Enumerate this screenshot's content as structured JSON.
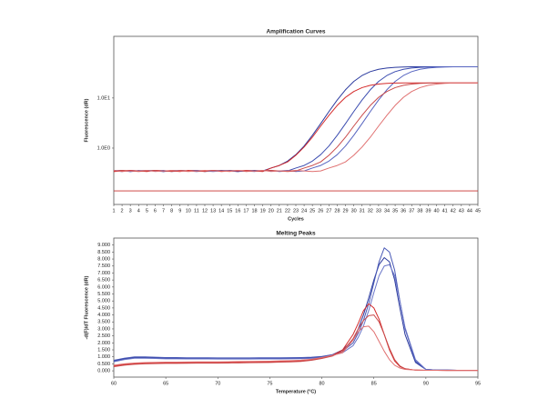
{
  "chart_data": [
    {
      "type": "line",
      "title": "Amplification Curves",
      "x_label": "Cycles",
      "y_label": "Fluorescence (dR)",
      "log_y": true,
      "grid": false,
      "x": [
        1,
        2,
        3,
        4,
        5,
        6,
        7,
        8,
        9,
        10,
        11,
        12,
        13,
        14,
        15,
        16,
        17,
        18,
        19,
        20,
        21,
        22,
        23,
        24,
        25,
        26,
        27,
        28,
        29,
        30,
        31,
        32,
        33,
        34,
        35,
        36,
        37,
        38,
        39,
        40,
        41,
        42,
        43,
        44,
        45
      ],
      "xlim": [
        1,
        45
      ],
      "xticks": [
        1,
        2,
        3,
        4,
        5,
        6,
        7,
        8,
        9,
        10,
        11,
        12,
        13,
        14,
        15,
        16,
        17,
        18,
        19,
        20,
        21,
        22,
        23,
        24,
        25,
        26,
        27,
        28,
        29,
        30,
        31,
        32,
        33,
        34,
        35,
        36,
        37,
        38,
        39,
        40,
        41,
        42,
        43,
        44,
        45
      ],
      "ylim": [
        0.075,
        170
      ],
      "yticks": [
        {
          "value": 1,
          "label": "1.0E0"
        },
        {
          "value": 10,
          "label": "1.0E1"
        }
      ],
      "threshold": 0.14,
      "threshold_color": "#c8312f",
      "series": [
        {
          "color": "#2b3a9e",
          "values": [
            0.35,
            0.36,
            0.34,
            0.35,
            0.36,
            0.35,
            0.34,
            0.36,
            0.35,
            0.35,
            0.36,
            0.34,
            0.35,
            0.36,
            0.35,
            0.34,
            0.35,
            0.36,
            0.35,
            0.4,
            0.45,
            0.55,
            0.74,
            1.1,
            1.8,
            3.08,
            5.36,
            9.12,
            14.6,
            21.4,
            28.1,
            33.6,
            37.4,
            39.6,
            40.9,
            41.6,
            42,
            42,
            42,
            42,
            42,
            42,
            42,
            42,
            42
          ]
        },
        {
          "color": "#3b4cb0",
          "values": [
            0.35,
            0.34,
            0.36,
            0.35,
            0.35,
            0.36,
            0.34,
            0.35,
            0.36,
            0.35,
            0.34,
            0.35,
            0.36,
            0.35,
            0.35,
            0.34,
            0.36,
            0.35,
            0.35,
            0.36,
            0.34,
            0.35,
            0.4,
            0.45,
            0.55,
            0.74,
            1.1,
            1.8,
            3.08,
            5.36,
            9.12,
            14.6,
            21.4,
            28.1,
            33.6,
            37.4,
            39.6,
            40.9,
            41.6,
            42,
            42,
            42,
            42,
            42,
            42
          ]
        },
        {
          "color": "#5664c0",
          "values": [
            0.36,
            0.35,
            0.34,
            0.36,
            0.35,
            0.35,
            0.36,
            0.34,
            0.35,
            0.35,
            0.36,
            0.35,
            0.34,
            0.35,
            0.36,
            0.35,
            0.35,
            0.34,
            0.36,
            0.35,
            0.35,
            0.36,
            0.34,
            0.35,
            0.4,
            0.45,
            0.55,
            0.74,
            1.1,
            1.8,
            3.08,
            5.36,
            9.12,
            14.6,
            21.4,
            28.1,
            33.6,
            37.4,
            39.6,
            40.9,
            41.6,
            42,
            42,
            42,
            42
          ]
        },
        {
          "color": "#d42a2a",
          "values": [
            0.34,
            0.35,
            0.36,
            0.35,
            0.34,
            0.36,
            0.35,
            0.35,
            0.34,
            0.36,
            0.35,
            0.35,
            0.36,
            0.34,
            0.35,
            0.35,
            0.36,
            0.35,
            0.34,
            0.4,
            0.45,
            0.53,
            0.72,
            1.05,
            1.65,
            2.75,
            4.5,
            7.1,
            10.3,
            13.5,
            16.1,
            17.9,
            19.0,
            19.6,
            19.9,
            20,
            20,
            20,
            20,
            20,
            20,
            20,
            20,
            20,
            20
          ]
        },
        {
          "color": "#c94a4a",
          "values": [
            0.35,
            0.36,
            0.35,
            0.34,
            0.35,
            0.36,
            0.35,
            0.34,
            0.36,
            0.35,
            0.35,
            0.34,
            0.36,
            0.35,
            0.35,
            0.36,
            0.34,
            0.35,
            0.35,
            0.36,
            0.35,
            0.34,
            0.35,
            0.4,
            0.45,
            0.53,
            0.72,
            1.05,
            1.65,
            2.75,
            4.5,
            7.1,
            10.3,
            13.5,
            16.1,
            17.9,
            19.0,
            19.6,
            19.9,
            20,
            20,
            20,
            20,
            20,
            20
          ]
        },
        {
          "color": "#e07070",
          "values": [
            0.36,
            0.34,
            0.35,
            0.35,
            0.36,
            0.34,
            0.35,
            0.36,
            0.35,
            0.34,
            0.35,
            0.36,
            0.35,
            0.35,
            0.34,
            0.36,
            0.35,
            0.35,
            0.36,
            0.34,
            0.35,
            0.35,
            0.36,
            0.35,
            0.34,
            0.35,
            0.4,
            0.45,
            0.53,
            0.72,
            1.05,
            1.65,
            2.75,
            4.5,
            7.1,
            10.3,
            13.5,
            16.1,
            17.9,
            19.0,
            19.6,
            19.9,
            20,
            20,
            20
          ]
        }
      ]
    },
    {
      "type": "line",
      "title": "Melting Peaks",
      "x_label": "Temperature (°C)",
      "y_label": "-d(F)/dT Fluorescence (dR)",
      "log_y": false,
      "grid": false,
      "x": [
        60,
        61,
        62,
        63,
        64,
        65,
        66,
        67,
        68,
        69,
        70,
        71,
        72,
        73,
        74,
        75,
        76,
        77,
        78,
        79,
        80,
        81,
        82,
        83,
        83.5,
        84,
        84.5,
        85,
        85.5,
        86,
        86.5,
        87,
        87.5,
        88,
        89,
        90,
        91,
        92,
        93,
        94,
        95
      ],
      "xlim": [
        60,
        95
      ],
      "xticks": [
        60,
        65,
        70,
        75,
        80,
        85,
        90,
        95
      ],
      "ylim": [
        -0.45,
        9.5
      ],
      "yticks": [
        {
          "value": 0,
          "label": "0.000"
        },
        {
          "value": 0.5,
          "label": "0.500"
        },
        {
          "value": 1,
          "label": "1.000"
        },
        {
          "value": 1.5,
          "label": "1.500"
        },
        {
          "value": 2,
          "label": "2.000"
        },
        {
          "value": 2.5,
          "label": "2.500"
        },
        {
          "value": 3,
          "label": "3.000"
        },
        {
          "value": 3.5,
          "label": "3.500"
        },
        {
          "value": 4,
          "label": "4.000"
        },
        {
          "value": 4.5,
          "label": "4.500"
        },
        {
          "value": 5,
          "label": "5.000"
        },
        {
          "value": 5.5,
          "label": "5.500"
        },
        {
          "value": 6,
          "label": "6.000"
        },
        {
          "value": 6.5,
          "label": "6.500"
        },
        {
          "value": 7,
          "label": "7.000"
        },
        {
          "value": 7.5,
          "label": "7.500"
        },
        {
          "value": 8,
          "label": "8.000"
        },
        {
          "value": 8.5,
          "label": "8.500"
        },
        {
          "value": 9,
          "label": "9.000"
        }
      ],
      "series": [
        {
          "color": "#2b3a9e",
          "values": [
            0.7,
            0.85,
            0.95,
            0.95,
            0.92,
            0.9,
            0.9,
            0.88,
            0.88,
            0.88,
            0.87,
            0.87,
            0.87,
            0.87,
            0.88,
            0.88,
            0.88,
            0.89,
            0.9,
            0.92,
            1.0,
            1.15,
            1.5,
            2.2,
            3.0,
            4.0,
            5.2,
            6.5,
            7.6,
            8.1,
            7.8,
            6.5,
            4.5,
            2.6,
            0.6,
            0.1,
            0.05,
            0.05,
            0.04,
            0.04,
            0.04
          ]
        },
        {
          "color": "#4656b5",
          "values": [
            0.75,
            0.9,
            1.0,
            1.0,
            0.97,
            0.95,
            0.95,
            0.93,
            0.93,
            0.93,
            0.92,
            0.92,
            0.92,
            0.92,
            0.93,
            0.93,
            0.93,
            0.94,
            0.95,
            0.97,
            1.03,
            1.15,
            1.4,
            2.0,
            2.7,
            3.6,
            4.8,
            6.3,
            7.8,
            8.8,
            8.5,
            7.2,
            5.0,
            3.0,
            0.7,
            0.1,
            0.05,
            0.05,
            0.04,
            0.04,
            0.04
          ]
        },
        {
          "color": "#6a76c8",
          "values": [
            0.65,
            0.8,
            0.9,
            0.9,
            0.88,
            0.86,
            0.86,
            0.85,
            0.85,
            0.85,
            0.84,
            0.84,
            0.84,
            0.84,
            0.85,
            0.85,
            0.85,
            0.86,
            0.87,
            0.89,
            0.96,
            1.1,
            1.3,
            1.8,
            2.4,
            3.2,
            4.3,
            5.6,
            6.8,
            7.5,
            7.6,
            6.8,
            5.0,
            3.1,
            0.8,
            0.1,
            0.05,
            0.05,
            0.04,
            0.04,
            0.04
          ]
        },
        {
          "color": "#d42a2a",
          "values": [
            0.35,
            0.45,
            0.52,
            0.55,
            0.57,
            0.58,
            0.58,
            0.59,
            0.6,
            0.6,
            0.6,
            0.61,
            0.62,
            0.63,
            0.64,
            0.65,
            0.67,
            0.69,
            0.72,
            0.8,
            0.92,
            1.1,
            1.5,
            2.6,
            3.4,
            4.3,
            4.8,
            4.5,
            3.7,
            2.6,
            1.5,
            0.7,
            0.3,
            0.15,
            0.05,
            0.04,
            0.04,
            0.03,
            0.03,
            0.03,
            0.03
          ]
        },
        {
          "color": "#c94a4a",
          "values": [
            0.3,
            0.4,
            0.47,
            0.5,
            0.52,
            0.53,
            0.53,
            0.54,
            0.55,
            0.55,
            0.55,
            0.56,
            0.57,
            0.58,
            0.59,
            0.6,
            0.62,
            0.64,
            0.67,
            0.75,
            0.88,
            1.05,
            1.4,
            2.3,
            3.0,
            3.6,
            3.95,
            4.0,
            3.5,
            2.6,
            1.6,
            0.8,
            0.35,
            0.15,
            0.05,
            0.04,
            0.04,
            0.03,
            0.03,
            0.03,
            0.03
          ]
        },
        {
          "color": "#e07070",
          "values": [
            0.4,
            0.5,
            0.56,
            0.59,
            0.61,
            0.62,
            0.62,
            0.63,
            0.64,
            0.64,
            0.64,
            0.65,
            0.66,
            0.67,
            0.68,
            0.69,
            0.71,
            0.73,
            0.76,
            0.83,
            0.95,
            1.1,
            1.3,
            2.2,
            2.8,
            3.15,
            3.2,
            2.8,
            2.1,
            1.4,
            0.8,
            0.4,
            0.2,
            0.1,
            0.05,
            0.04,
            0.04,
            0.03,
            0.03,
            0.03,
            0.03
          ]
        }
      ]
    }
  ]
}
